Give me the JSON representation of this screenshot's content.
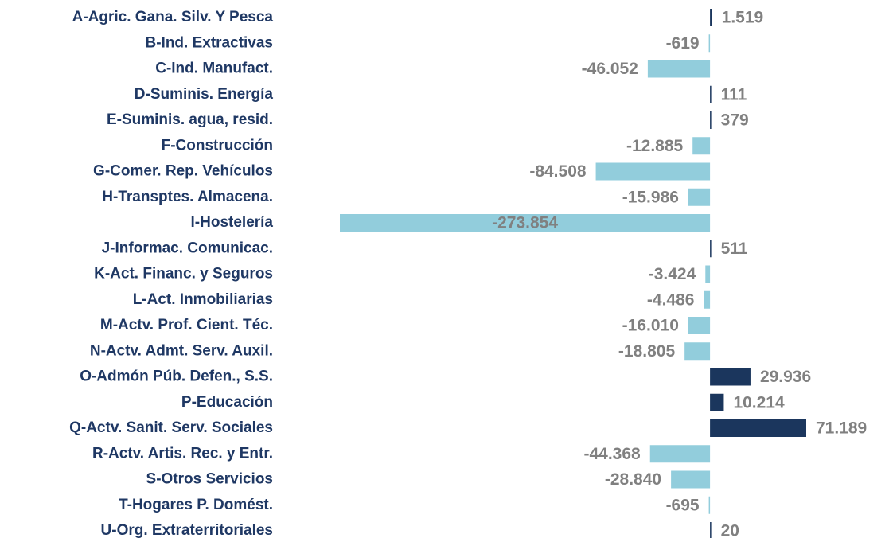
{
  "chart_data": {
    "type": "bar",
    "orientation": "horizontal",
    "categories": [
      "A-Agric. Gana. Silv. Y Pesca",
      "B-Ind. Extractivas",
      "C-Ind. Manufact.",
      "D-Suminis. Energía",
      "E-Suminis. agua, resid.",
      "F-Construcción",
      "G-Comer. Rep. Vehículos",
      "H-Transptes. Almacena.",
      "I-Hostelería",
      "J-Informac. Comunicac.",
      "K-Act. Financ. y Seguros",
      "L-Act. Inmobiliarias",
      "M-Actv. Prof. Cient. Téc.",
      "N-Actv. Admt. Serv. Auxil.",
      "O-Admón Púb. Defen., S.S.",
      "P-Educación",
      "Q-Actv. Sanit. Serv. Sociales",
      "R-Actv. Artis. Rec. y Entr.",
      "S-Otros Servicios",
      "T-Hogares P. Domést.",
      "U-Org. Extraterritoriales"
    ],
    "values": [
      1519,
      -619,
      -46052,
      111,
      379,
      -12885,
      -84508,
      -15986,
      -273854,
      511,
      -3424,
      -4486,
      -16010,
      -18805,
      29936,
      10214,
      71189,
      -44368,
      -28840,
      -695,
      20
    ],
    "value_labels": [
      "1.519",
      "-619",
      "-46.052",
      "111",
      "379",
      "-12.885",
      "-84.508",
      "-15.986",
      "-273.854",
      "511",
      "-3.424",
      "-4.486",
      "-16.010",
      "-18.805",
      "29.936",
      "10.214",
      "71.189",
      "-44.368",
      "-28.840",
      "-695",
      "20"
    ],
    "color_positive": "#1b365d",
    "color_negative": "#92cddc"
  }
}
